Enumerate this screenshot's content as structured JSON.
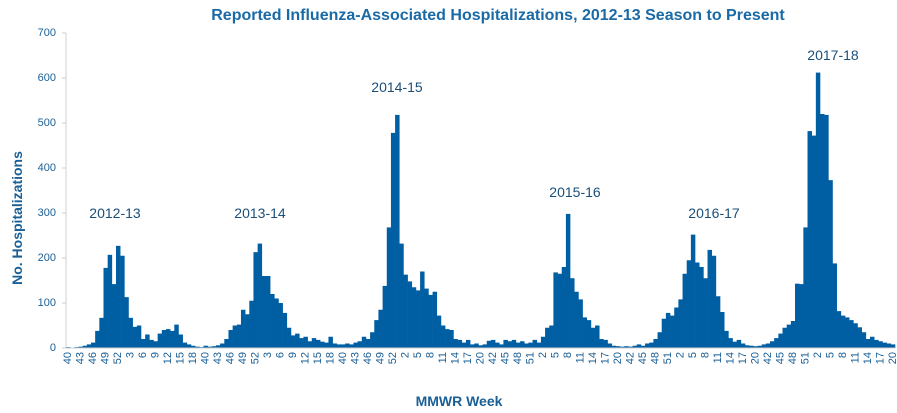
{
  "chart_data": {
    "type": "bar",
    "title": "Reported Influenza-Associated Hospitalizations, 2012-13 Season to Present",
    "x_label": "MMWR Week",
    "y_label": "No. Hospitalizations",
    "annotations": [
      "2012-13",
      "2013-14",
      "2014-15",
      "2015-16",
      "2016-17",
      "2017-18"
    ],
    "color": "#005ea2",
    "ylim": [
      0,
      700
    ],
    "yticks": [
      0,
      100,
      200,
      300,
      400,
      500,
      600,
      700
    ],
    "grid": false,
    "categories": [
      "40",
      null,
      null,
      "43",
      null,
      null,
      "46",
      null,
      null,
      "49",
      null,
      null,
      "52",
      null,
      null,
      "3",
      null,
      null,
      "6",
      null,
      null,
      "9",
      null,
      null,
      "12",
      null,
      null,
      "15",
      null,
      null,
      "18",
      null,
      null,
      "40",
      null,
      null,
      "43",
      null,
      null,
      "46",
      null,
      null,
      "49",
      null,
      null,
      "52",
      null,
      null,
      "3",
      null,
      null,
      "6",
      null,
      null,
      "9",
      null,
      null,
      "12",
      null,
      null,
      "15",
      null,
      null,
      "18",
      null,
      null,
      "40",
      null,
      null,
      "43",
      null,
      null,
      "46",
      null,
      null,
      "49",
      null,
      null,
      "52",
      null,
      null,
      "2",
      null,
      null,
      "5",
      null,
      null,
      "8",
      null,
      null,
      "11",
      null,
      null,
      "14",
      null,
      null,
      "17",
      null,
      null,
      "20",
      null,
      null,
      "42",
      null,
      null,
      "45",
      null,
      null,
      "48",
      null,
      null,
      "51",
      null,
      null,
      "2",
      null,
      null,
      "5",
      null,
      null,
      "8",
      null,
      null,
      "11",
      null,
      null,
      "14",
      null,
      null,
      "17",
      null,
      null,
      "20",
      null,
      null,
      "42",
      null,
      null,
      "45",
      null,
      null,
      "48",
      null,
      null,
      "51",
      null,
      null,
      "2",
      null,
      null,
      "5",
      null,
      null,
      "8",
      null,
      null,
      "11",
      null,
      null,
      "14",
      null,
      null,
      "17",
      null,
      null,
      "20",
      null,
      null,
      "42",
      null,
      null,
      "45",
      null,
      null,
      "48",
      null,
      null,
      "51",
      null,
      null,
      "2",
      null,
      null,
      "5",
      null,
      null,
      "8",
      null,
      null,
      "11",
      null,
      null,
      "14",
      null,
      null,
      "17",
      null,
      null,
      "20"
    ],
    "values": [
      2,
      1,
      2,
      3,
      5,
      8,
      12,
      38,
      67,
      178,
      207,
      142,
      227,
      205,
      113,
      67,
      47,
      50,
      20,
      30,
      18,
      15,
      32,
      40,
      42,
      38,
      52,
      30,
      12,
      8,
      5,
      3,
      2,
      5,
      3,
      4,
      6,
      10,
      20,
      40,
      50,
      52,
      85,
      75,
      105,
      213,
      232,
      160,
      160,
      120,
      110,
      100,
      78,
      45,
      28,
      32,
      22,
      25,
      15,
      22,
      18,
      14,
      12,
      25,
      10,
      8,
      8,
      10,
      8,
      12,
      15,
      25,
      20,
      35,
      62,
      85,
      138,
      268,
      478,
      518,
      232,
      163,
      148,
      135,
      128,
      170,
      132,
      118,
      125,
      72,
      50,
      42,
      40,
      20,
      18,
      12,
      18,
      8,
      10,
      6,
      8,
      16,
      18,
      12,
      8,
      18,
      15,
      18,
      12,
      15,
      10,
      12,
      18,
      12,
      25,
      45,
      50,
      168,
      165,
      180,
      298,
      155,
      125,
      108,
      68,
      62,
      45,
      50,
      20,
      18,
      10,
      5,
      4,
      3,
      4,
      3,
      5,
      8,
      5,
      10,
      12,
      20,
      35,
      65,
      78,
      72,
      90,
      108,
      165,
      195,
      252,
      190,
      180,
      155,
      218,
      205,
      115,
      80,
      38,
      22,
      14,
      18,
      10,
      6,
      5,
      4,
      5,
      8,
      10,
      15,
      22,
      32,
      45,
      52,
      60,
      143,
      142,
      268,
      482,
      472,
      612,
      520,
      518,
      373,
      188,
      82,
      72,
      68,
      62,
      55,
      46,
      35,
      20,
      25,
      18,
      15,
      12,
      10,
      8
    ]
  }
}
